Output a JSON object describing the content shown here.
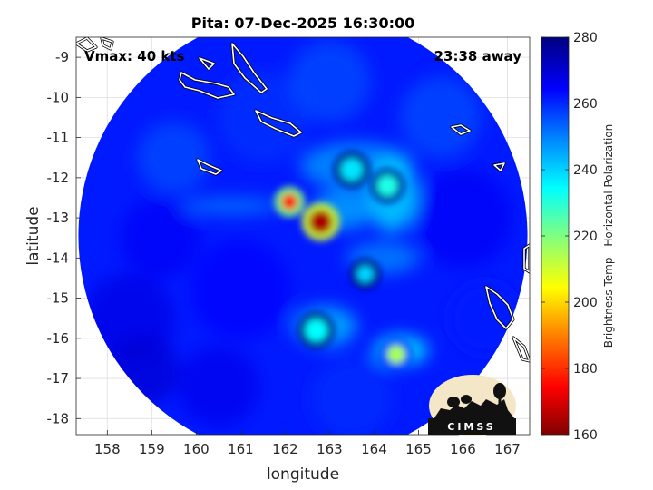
{
  "chart_data": {
    "type": "heatmap",
    "title": "Pita: 07-Dec-2025 16:30:00",
    "vmax_label": "Vmax: 40 kts",
    "away_label": "23:38 away",
    "xlabel": "longitude",
    "ylabel": "latitude",
    "xlim": [
      157.3,
      167.5
    ],
    "ylim": [
      -18.4,
      -8.5
    ],
    "x_ticks": [
      158,
      159,
      160,
      161,
      162,
      163,
      164,
      165,
      166,
      167
    ],
    "y_ticks": [
      -9,
      -10,
      -11,
      -12,
      -13,
      -14,
      -15,
      -16,
      -17,
      -18
    ],
    "grid": true,
    "colorbar": {
      "label": "Brightness Temp - Horizontal Polarization",
      "range": [
        160,
        280
      ],
      "ticks": [
        160,
        180,
        200,
        220,
        240,
        260,
        280
      ],
      "colormap": [
        "#800000",
        "#ff0000",
        "#ff8000",
        "#ffff00",
        "#80ff80",
        "#00ffff",
        "#0080ff",
        "#0000ff",
        "#000080"
      ]
    },
    "swath": {
      "center_lon": 162.4,
      "center_lat": -13.45,
      "radius_deg_lon": 5.05
    },
    "background_temp": 262,
    "features": [
      {
        "lon": 162.8,
        "lat": -13.1,
        "temp": 165
      },
      {
        "lon": 162.1,
        "lat": -12.6,
        "temp": 175
      },
      {
        "lon": 163.5,
        "lat": -11.8,
        "temp": 238
      },
      {
        "lon": 164.3,
        "lat": -12.2,
        "temp": 232
      },
      {
        "lon": 164.5,
        "lat": -16.4,
        "temp": 215
      },
      {
        "lon": 162.7,
        "lat": -15.8,
        "temp": 235
      },
      {
        "lon": 163.8,
        "lat": -14.4,
        "temp": 240
      }
    ],
    "logo_text": "CIMSS"
  }
}
